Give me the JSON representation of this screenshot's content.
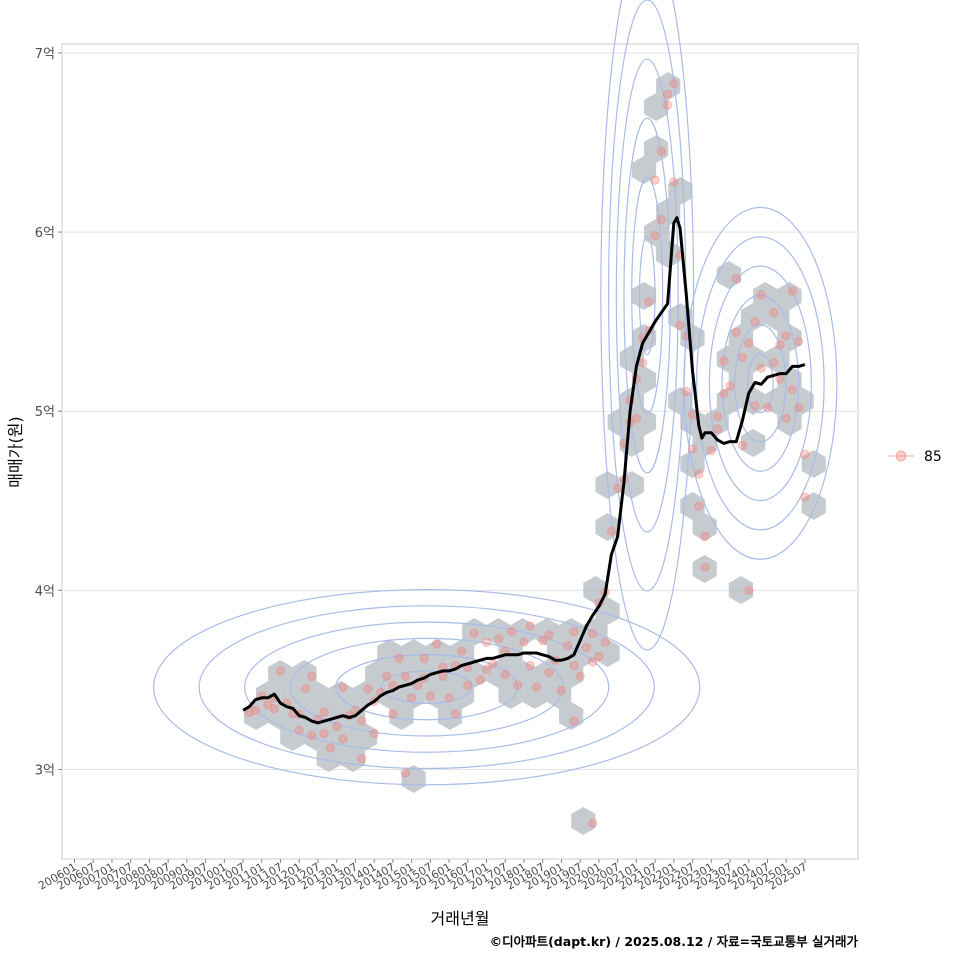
{
  "chart_data": {
    "type": "scatter",
    "xlabel": "거래년월",
    "ylabel": "매매가(원)",
    "caption": "©디아파트(dapt.kr) / 2025.08.12 / 자료=국토교통부 실거래가",
    "y_unit": "억",
    "ylim": [
      2.5,
      7.05
    ],
    "y_ticks": [
      3,
      4,
      5,
      6,
      7
    ],
    "y_tick_labels": [
      "3억",
      "4억",
      "5억",
      "6억",
      "7억"
    ],
    "xlim": [
      "2005-09",
      "2026-12"
    ],
    "x_ticks": [
      "2006-01",
      "2006-07",
      "2007-01",
      "2007-07",
      "2008-01",
      "2008-07",
      "2009-01",
      "2009-07",
      "2010-01",
      "2010-07",
      "2011-01",
      "2011-07",
      "2012-01",
      "2012-07",
      "2013-01",
      "2013-07",
      "2014-01",
      "2014-07",
      "2015-01",
      "2015-07",
      "2016-01",
      "2016-07",
      "2017-01",
      "2017-07",
      "2018-01",
      "2018-07",
      "2019-01",
      "2019-07",
      "2020-01",
      "2020-07",
      "2021-01",
      "2021-07",
      "2022-01",
      "2022-07",
      "2023-01",
      "2023-07",
      "2024-01",
      "2024-07",
      "2025-01",
      "2025-07"
    ],
    "x_tick_labels": [
      "200601",
      "200607",
      "200701",
      "200707",
      "200801",
      "200807",
      "200901",
      "200907",
      "201001",
      "201007",
      "201101",
      "201107",
      "201201",
      "201207",
      "201301",
      "201307",
      "201401",
      "201407",
      "201501",
      "201507",
      "201601",
      "201607",
      "201701",
      "201707",
      "201801",
      "201807",
      "201901",
      "201907",
      "202001",
      "202007",
      "202101",
      "202107",
      "202201",
      "202207",
      "202301",
      "202307",
      "202401",
      "202407",
      "202501",
      "202507"
    ],
    "grid": true,
    "legend": {
      "position": "right",
      "entries": [
        {
          "label": "85",
          "color": "#F8766D"
        }
      ]
    },
    "series": [
      {
        "name": "85",
        "kind": "trend_line",
        "color": "#000000",
        "points": [
          [
            "2010-07",
            3.33
          ],
          [
            "2010-09",
            3.35
          ],
          [
            "2010-11",
            3.39
          ],
          [
            "2011-01",
            3.4
          ],
          [
            "2011-03",
            3.4
          ],
          [
            "2011-05",
            3.42
          ],
          [
            "2011-07",
            3.37
          ],
          [
            "2011-09",
            3.35
          ],
          [
            "2011-11",
            3.34
          ],
          [
            "2012-01",
            3.3
          ],
          [
            "2012-03",
            3.29
          ],
          [
            "2012-05",
            3.27
          ],
          [
            "2012-07",
            3.26
          ],
          [
            "2012-09",
            3.27
          ],
          [
            "2012-11",
            3.28
          ],
          [
            "2013-01",
            3.29
          ],
          [
            "2013-03",
            3.3
          ],
          [
            "2013-05",
            3.29
          ],
          [
            "2013-07",
            3.3
          ],
          [
            "2013-09",
            3.33
          ],
          [
            "2013-11",
            3.36
          ],
          [
            "2014-01",
            3.38
          ],
          [
            "2014-03",
            3.41
          ],
          [
            "2014-05",
            3.43
          ],
          [
            "2014-07",
            3.44
          ],
          [
            "2014-09",
            3.46
          ],
          [
            "2014-11",
            3.47
          ],
          [
            "2015-01",
            3.48
          ],
          [
            "2015-03",
            3.5
          ],
          [
            "2015-05",
            3.51
          ],
          [
            "2015-07",
            3.53
          ],
          [
            "2015-09",
            3.54
          ],
          [
            "2015-11",
            3.55
          ],
          [
            "2016-01",
            3.55
          ],
          [
            "2016-03",
            3.56
          ],
          [
            "2016-05",
            3.58
          ],
          [
            "2016-07",
            3.59
          ],
          [
            "2016-09",
            3.6
          ],
          [
            "2016-11",
            3.61
          ],
          [
            "2017-01",
            3.62
          ],
          [
            "2017-03",
            3.62
          ],
          [
            "2017-05",
            3.63
          ],
          [
            "2017-07",
            3.64
          ],
          [
            "2017-09",
            3.64
          ],
          [
            "2017-11",
            3.64
          ],
          [
            "2018-01",
            3.65
          ],
          [
            "2018-03",
            3.65
          ],
          [
            "2018-05",
            3.65
          ],
          [
            "2018-07",
            3.64
          ],
          [
            "2018-09",
            3.63
          ],
          [
            "2018-11",
            3.61
          ],
          [
            "2019-01",
            3.61
          ],
          [
            "2019-03",
            3.62
          ],
          [
            "2019-05",
            3.64
          ],
          [
            "2019-07",
            3.72
          ],
          [
            "2019-09",
            3.8
          ],
          [
            "2019-11",
            3.86
          ],
          [
            "2020-01",
            3.91
          ],
          [
            "2020-03",
            3.98
          ],
          [
            "2020-05",
            4.2
          ],
          [
            "2020-07",
            4.3
          ],
          [
            "2020-09",
            4.6
          ],
          [
            "2020-11",
            5.0
          ],
          [
            "2021-01",
            5.25
          ],
          [
            "2021-03",
            5.38
          ],
          [
            "2021-05",
            5.44
          ],
          [
            "2021-07",
            5.5
          ],
          [
            "2021-09",
            5.55
          ],
          [
            "2021-11",
            5.6
          ],
          [
            "2022-01",
            6.05
          ],
          [
            "2022-02",
            6.08
          ],
          [
            "2022-03",
            6.02
          ],
          [
            "2022-05",
            5.65
          ],
          [
            "2022-07",
            5.22
          ],
          [
            "2022-09",
            4.92
          ],
          [
            "2022-10",
            4.85
          ],
          [
            "2022-11",
            4.88
          ],
          [
            "2023-01",
            4.88
          ],
          [
            "2023-03",
            4.84
          ],
          [
            "2023-05",
            4.82
          ],
          [
            "2023-07",
            4.83
          ],
          [
            "2023-09",
            4.83
          ],
          [
            "2023-11",
            4.95
          ],
          [
            "2024-01",
            5.1
          ],
          [
            "2024-03",
            5.16
          ],
          [
            "2024-05",
            5.15
          ],
          [
            "2024-07",
            5.19
          ],
          [
            "2024-09",
            5.2
          ],
          [
            "2024-11",
            5.21
          ],
          [
            "2025-01",
            5.21
          ],
          [
            "2025-03",
            5.25
          ],
          [
            "2025-05",
            5.25
          ],
          [
            "2025-07",
            5.26
          ]
        ]
      },
      {
        "name": "85",
        "kind": "transactions",
        "color": "#F8766D",
        "points": [
          [
            "2010-09",
            3.32
          ],
          [
            "2010-11",
            3.33
          ],
          [
            "2011-01",
            3.41
          ],
          [
            "2011-03",
            3.36
          ],
          [
            "2011-05",
            3.4
          ],
          [
            "2011-05",
            3.34
          ],
          [
            "2011-07",
            3.55
          ],
          [
            "2011-09",
            3.37
          ],
          [
            "2011-11",
            3.31
          ],
          [
            "2012-01",
            3.31
          ],
          [
            "2012-01",
            3.22
          ],
          [
            "2012-03",
            3.45
          ],
          [
            "2012-05",
            3.19
          ],
          [
            "2012-07",
            3.28
          ],
          [
            "2012-09",
            3.2
          ],
          [
            "2012-09",
            3.32
          ],
          [
            "2012-11",
            3.12
          ],
          [
            "2013-01",
            3.24
          ],
          [
            "2013-03",
            3.46
          ],
          [
            "2013-03",
            3.17
          ],
          [
            "2013-05",
            3.3
          ],
          [
            "2013-07",
            3.33
          ],
          [
            "2013-09",
            3.27
          ],
          [
            "2013-09",
            3.06
          ],
          [
            "2013-11",
            3.45
          ],
          [
            "2014-01",
            3.38
          ],
          [
            "2014-01",
            3.2
          ],
          [
            "2014-03",
            3.43
          ],
          [
            "2014-05",
            3.52
          ],
          [
            "2014-07",
            3.31
          ],
          [
            "2014-07",
            3.47
          ],
          [
            "2014-09",
            3.62
          ],
          [
            "2014-11",
            3.52
          ],
          [
            "2015-01",
            3.4
          ],
          [
            "2015-03",
            3.47
          ],
          [
            "2015-05",
            3.51
          ],
          [
            "2015-05",
            3.62
          ],
          [
            "2015-07",
            3.41
          ],
          [
            "2015-09",
            3.7
          ],
          [
            "2015-11",
            3.52
          ],
          [
            "2015-11",
            3.57
          ],
          [
            "2016-01",
            3.4
          ],
          [
            "2016-03",
            3.58
          ],
          [
            "2016-05",
            3.66
          ],
          [
            "2016-07",
            3.57
          ],
          [
            "2016-07",
            3.47
          ],
          [
            "2016-09",
            3.76
          ],
          [
            "2016-11",
            3.5
          ],
          [
            "2017-01",
            3.56
          ],
          [
            "2017-01",
            3.71
          ],
          [
            "2017-03",
            3.59
          ],
          [
            "2017-05",
            3.73
          ],
          [
            "2017-07",
            3.53
          ],
          [
            "2017-07",
            3.66
          ],
          [
            "2017-09",
            3.77
          ],
          [
            "2017-11",
            3.47
          ],
          [
            "2018-01",
            3.71
          ],
          [
            "2018-03",
            3.58
          ],
          [
            "2018-03",
            3.8
          ],
          [
            "2018-05",
            3.46
          ],
          [
            "2018-07",
            3.72
          ],
          [
            "2018-09",
            3.54
          ],
          [
            "2018-09",
            3.75
          ],
          [
            "2018-11",
            3.61
          ],
          [
            "2019-01",
            3.44
          ],
          [
            "2019-03",
            3.69
          ],
          [
            "2019-05",
            3.58
          ],
          [
            "2019-05",
            3.77
          ],
          [
            "2019-07",
            3.52
          ],
          [
            "2019-09",
            3.68
          ],
          [
            "2019-11",
            3.76
          ],
          [
            "2019-11",
            3.6
          ],
          [
            "2020-01",
            3.93
          ],
          [
            "2020-01",
            3.63
          ],
          [
            "2020-03",
            3.99
          ],
          [
            "2020-03",
            3.71
          ],
          [
            "2020-05",
            4.33
          ],
          [
            "2020-07",
            4.57
          ],
          [
            "2020-09",
            4.82
          ],
          [
            "2020-09",
            4.62
          ],
          [
            "2020-11",
            4.94
          ],
          [
            "2020-11",
            5.06
          ],
          [
            "2021-01",
            4.96
          ],
          [
            "2021-01",
            5.18
          ],
          [
            "2021-03",
            5.27
          ],
          [
            "2021-03",
            5.41
          ],
          [
            "2021-05",
            5.45
          ],
          [
            "2021-05",
            5.61
          ],
          [
            "2021-07",
            5.98
          ],
          [
            "2021-07",
            6.29
          ],
          [
            "2021-09",
            6.45
          ],
          [
            "2021-09",
            6.07
          ],
          [
            "2021-11",
            6.71
          ],
          [
            "2021-11",
            6.77
          ],
          [
            "2022-01",
            6.83
          ],
          [
            "2022-01",
            6.28
          ],
          [
            "2022-03",
            5.87
          ],
          [
            "2022-03",
            5.48
          ],
          [
            "2022-05",
            5.42
          ],
          [
            "2022-05",
            5.11
          ],
          [
            "2022-07",
            4.98
          ],
          [
            "2022-07",
            4.79
          ],
          [
            "2022-09",
            4.65
          ],
          [
            "2022-09",
            4.47
          ],
          [
            "2022-11",
            4.3
          ],
          [
            "2022-11",
            4.13
          ],
          [
            "2023-01",
            4.78
          ],
          [
            "2023-03",
            4.9
          ],
          [
            "2023-03",
            4.97
          ],
          [
            "2023-05",
            5.1
          ],
          [
            "2023-05",
            5.28
          ],
          [
            "2023-07",
            5.14
          ],
          [
            "2023-09",
            5.44
          ],
          [
            "2023-09",
            5.74
          ],
          [
            "2023-11",
            5.3
          ],
          [
            "2023-11",
            4.81
          ],
          [
            "2024-01",
            4.0
          ],
          [
            "2024-01",
            5.38
          ],
          [
            "2024-03",
            5.03
          ],
          [
            "2024-03",
            5.5
          ],
          [
            "2024-05",
            5.65
          ],
          [
            "2024-05",
            5.24
          ],
          [
            "2024-07",
            5.02
          ],
          [
            "2024-09",
            5.27
          ],
          [
            "2024-09",
            5.55
          ],
          [
            "2024-11",
            5.37
          ],
          [
            "2024-11",
            5.18
          ],
          [
            "2025-01",
            4.96
          ],
          [
            "2025-01",
            5.42
          ],
          [
            "2025-03",
            5.67
          ],
          [
            "2025-03",
            5.12
          ],
          [
            "2025-05",
            5.39
          ],
          [
            "2025-05",
            5.02
          ],
          [
            "2025-07",
            4.52
          ],
          [
            "2025-07",
            4.76
          ],
          [
            "2019-11",
            2.7
          ],
          [
            "2014-11",
            2.98
          ],
          [
            "2012-05",
            3.52
          ],
          [
            "2016-03",
            3.31
          ],
          [
            "2019-05",
            3.27
          ]
        ]
      }
    ]
  }
}
